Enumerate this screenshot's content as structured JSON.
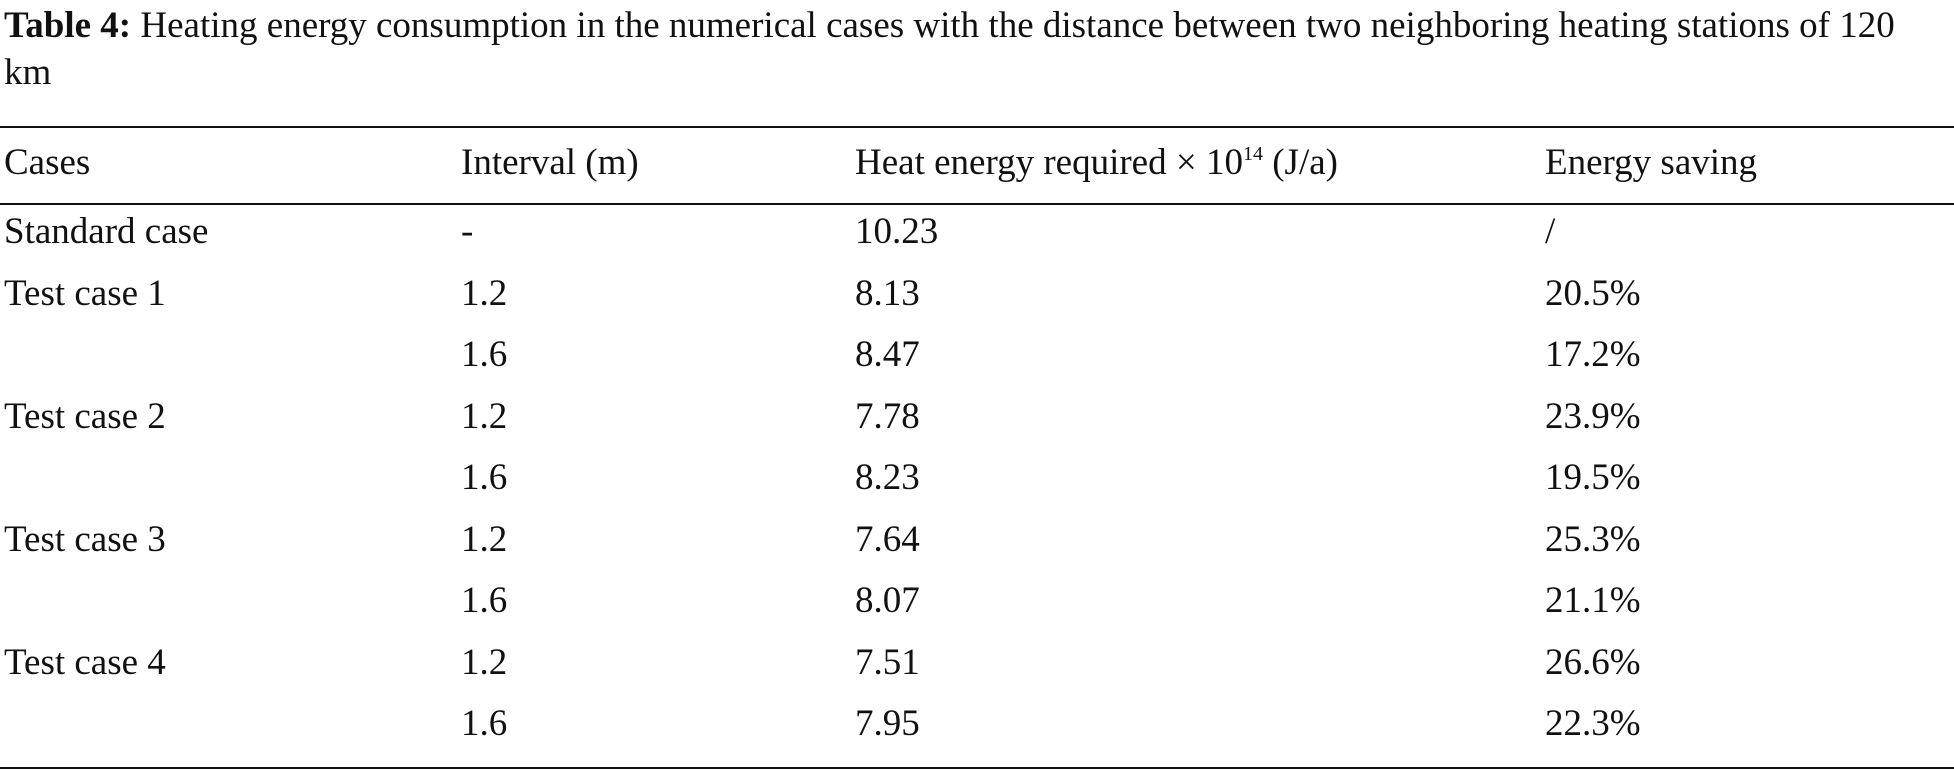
{
  "caption": {
    "label": "Table 4:",
    "text": " Heating energy consumption in the numerical cases with the distance between two neighboring heating stations of 120 km"
  },
  "table": {
    "headers": {
      "cases": "Cases",
      "interval": "Interval (m)",
      "heat_prefix": "Heat energy required × 10",
      "heat_exp": "14",
      "heat_suffix": " (J/a)",
      "saving": "Energy saving"
    },
    "rows": [
      {
        "case": "Standard case",
        "interval": "-",
        "heat": "10.23",
        "saving": "/"
      },
      {
        "case": "Test case 1",
        "interval": "1.2",
        "heat": "8.13",
        "saving": "20.5%"
      },
      {
        "case": "",
        "interval": "1.6",
        "heat": "8.47",
        "saving": "17.2%"
      },
      {
        "case": "Test case 2",
        "interval": "1.2",
        "heat": "7.78",
        "saving": "23.9%"
      },
      {
        "case": "",
        "interval": "1.6",
        "heat": "8.23",
        "saving": "19.5%"
      },
      {
        "case": "Test case 3",
        "interval": "1.2",
        "heat": "7.64",
        "saving": "25.3%"
      },
      {
        "case": "",
        "interval": "1.6",
        "heat": "8.07",
        "saving": "21.1%"
      },
      {
        "case": "Test case 4",
        "interval": "1.2",
        "heat": "7.51",
        "saving": "26.6%"
      },
      {
        "case": "",
        "interval": "1.6",
        "heat": "7.95",
        "saving": "22.3%"
      }
    ]
  }
}
